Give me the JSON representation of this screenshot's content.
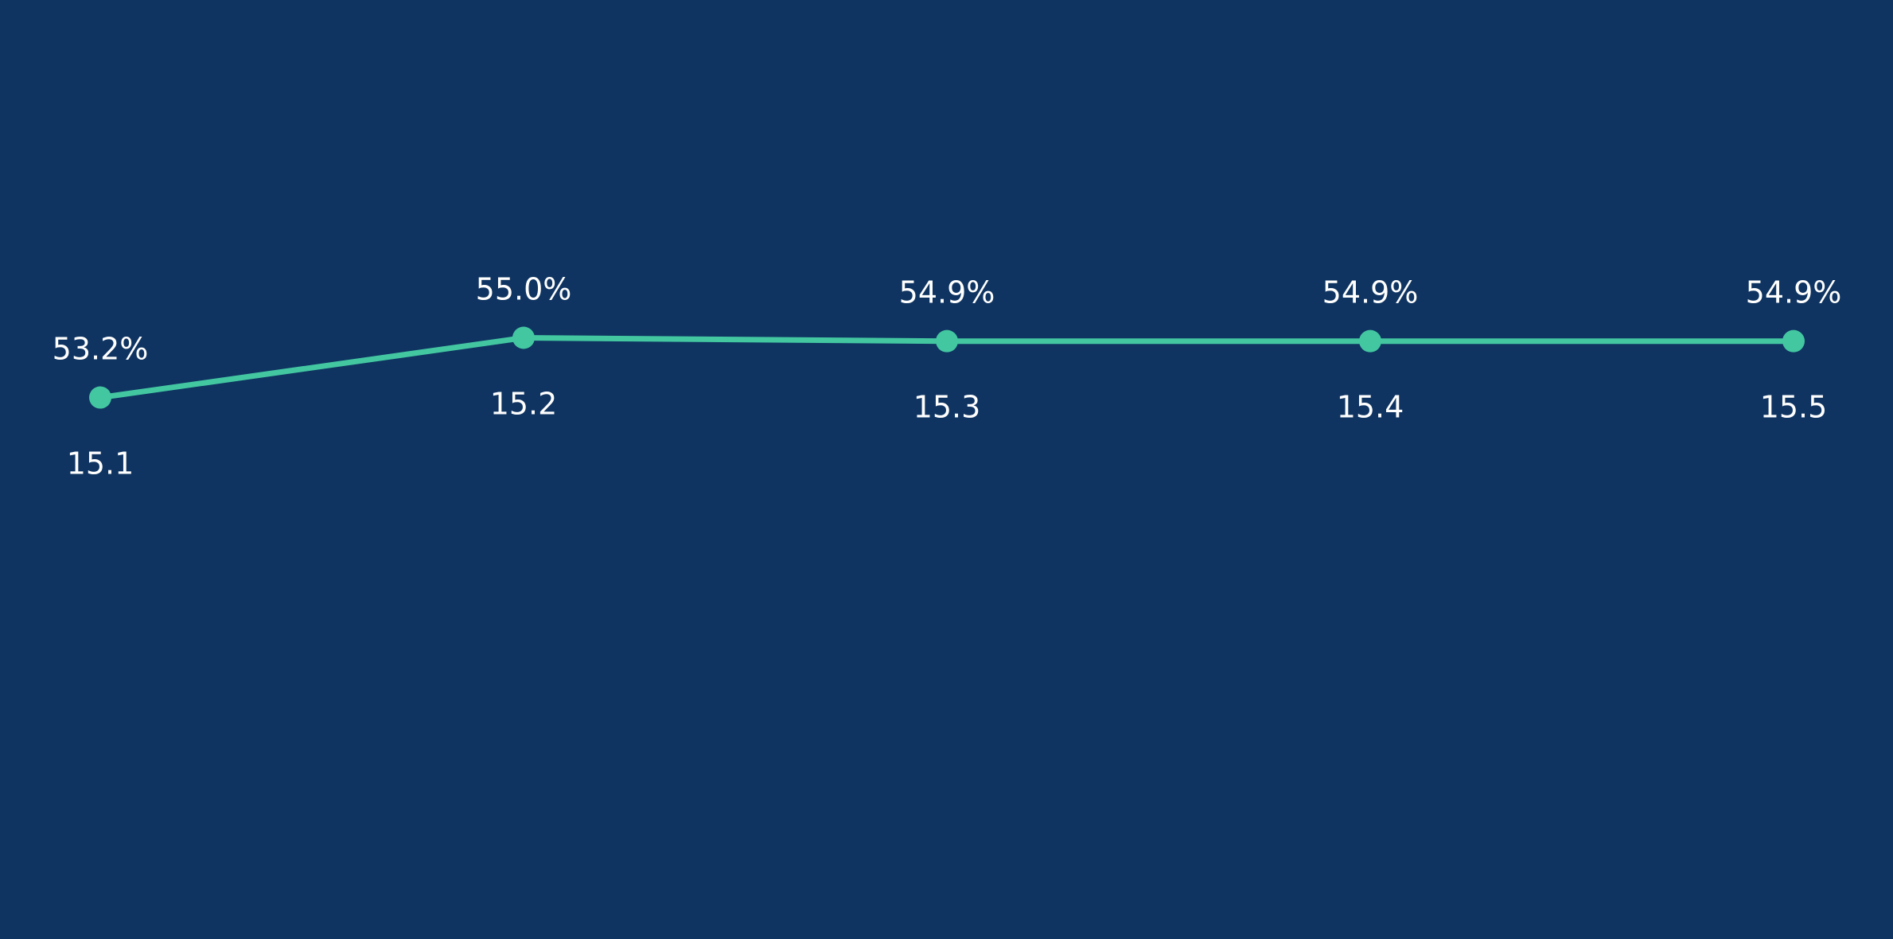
{
  "chart_data": {
    "type": "line",
    "categories": [
      "15.1",
      "15.2",
      "15.3",
      "15.4",
      "15.5"
    ],
    "series": [
      {
        "values": [
          53.2,
          55.0,
          54.9,
          54.9,
          54.9
        ],
        "labels": [
          "53.2%",
          "55.0%",
          "54.9%",
          "54.9%",
          "54.9%"
        ]
      }
    ],
    "ylim": [
      40,
      60
    ],
    "grid": false,
    "legend": "none"
  },
  "colors": {
    "background": "#0f3461",
    "line": "#43c7a1",
    "text": "#ffffff"
  }
}
